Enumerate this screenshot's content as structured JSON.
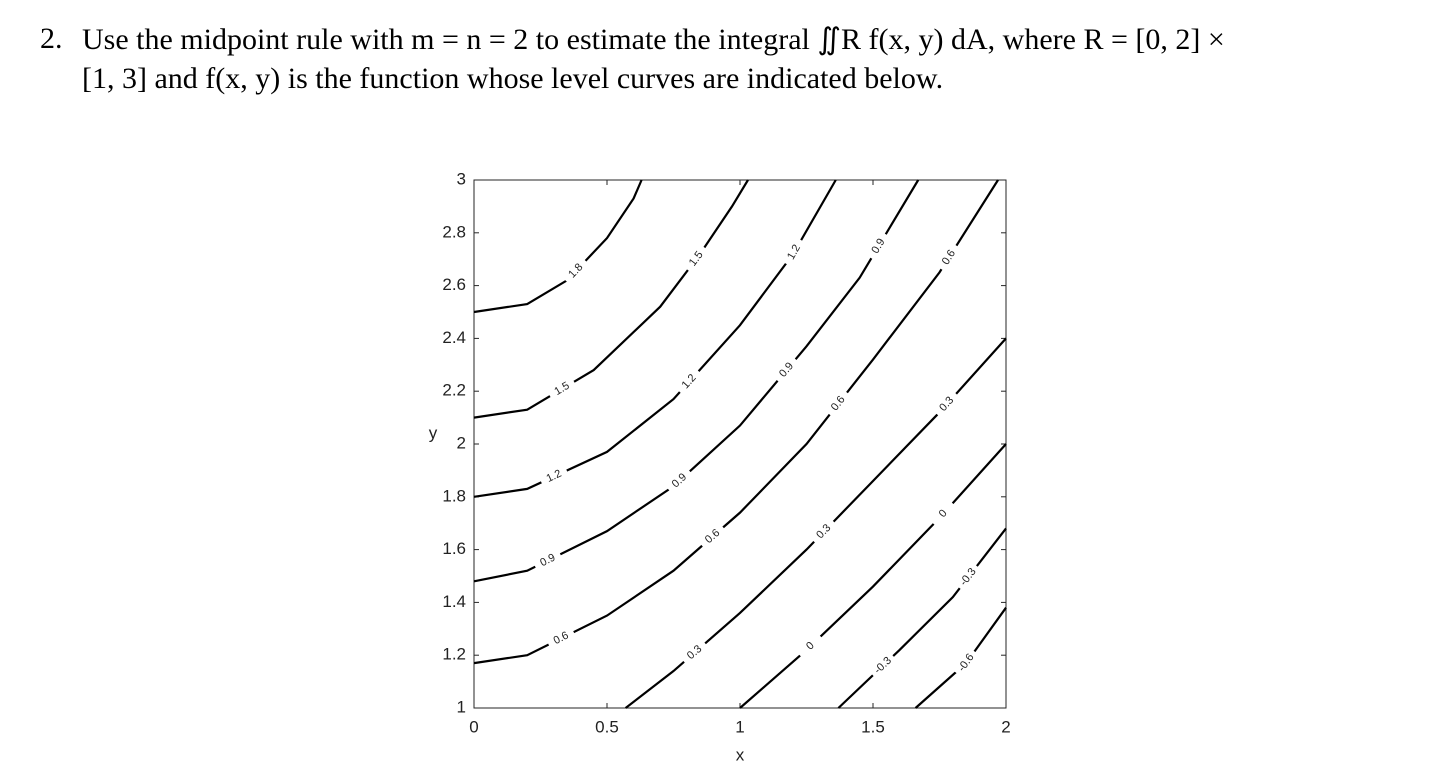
{
  "problem": {
    "number": "2.",
    "line1": "Use the midpoint rule with m = n = 2 to estimate the integral ∬R f(x, y) dA, where R = [0, 2] ×",
    "line2": "[1, 3] and f(x, y) is the function whose level curves are indicated below."
  },
  "chart_data": {
    "type": "contour",
    "xlabel": "x",
    "ylabel": "y",
    "xlim": [
      0,
      2
    ],
    "ylim": [
      1,
      3
    ],
    "xticks": [
      0,
      0.5,
      1,
      1.5,
      2
    ],
    "yticks": [
      1,
      1.2,
      1.4,
      1.6,
      1.8,
      2,
      2.2,
      2.4,
      2.6,
      2.8,
      3
    ],
    "color": "#000000",
    "series": [
      {
        "level": 1.8,
        "x": [
          0,
          0.2,
          0.35,
          0.5,
          0.6,
          0.63
        ],
        "y": [
          2.5,
          2.53,
          2.62,
          2.78,
          2.93,
          3
        ]
      },
      {
        "level": 1.5,
        "x": [
          0,
          0.2,
          0.45,
          0.7,
          0.85,
          0.97,
          1.03
        ],
        "y": [
          2.1,
          2.13,
          2.28,
          2.52,
          2.72,
          2.9,
          3
        ]
      },
      {
        "level": 1.2,
        "x": [
          0,
          0.2,
          0.5,
          0.75,
          1.0,
          1.2,
          1.36
        ],
        "y": [
          1.8,
          1.83,
          1.97,
          2.17,
          2.45,
          2.72,
          3
        ]
      },
      {
        "level": 0.9,
        "x": [
          0,
          0.2,
          0.5,
          0.75,
          1.0,
          1.25,
          1.45,
          1.67
        ],
        "y": [
          1.48,
          1.52,
          1.67,
          1.84,
          2.07,
          2.37,
          2.63,
          3
        ]
      },
      {
        "level": 0.6,
        "x": [
          0,
          0.2,
          0.5,
          0.75,
          1.0,
          1.25,
          1.5,
          1.75,
          1.97
        ],
        "y": [
          1.17,
          1.2,
          1.35,
          1.52,
          1.74,
          2.0,
          2.32,
          2.65,
          3
        ]
      },
      {
        "level": 0.3,
        "x": [
          0.57,
          0.75,
          1.0,
          1.25,
          1.5,
          1.75,
          2
        ],
        "y": [
          1,
          1.14,
          1.36,
          1.6,
          1.86,
          2.12,
          2.4
        ]
      },
      {
        "level": 0,
        "x": [
          1.0,
          1.25,
          1.5,
          1.75,
          2
        ],
        "y": [
          1,
          1.22,
          1.46,
          1.72,
          2.0
        ]
      },
      {
        "level": -0.3,
        "x": [
          1.37,
          1.6,
          1.8,
          2
        ],
        "y": [
          1,
          1.22,
          1.42,
          1.68
        ]
      },
      {
        "level": -0.6,
        "x": [
          1.66,
          1.85,
          2
        ],
        "y": [
          1,
          1.17,
          1.38
        ]
      }
    ]
  }
}
